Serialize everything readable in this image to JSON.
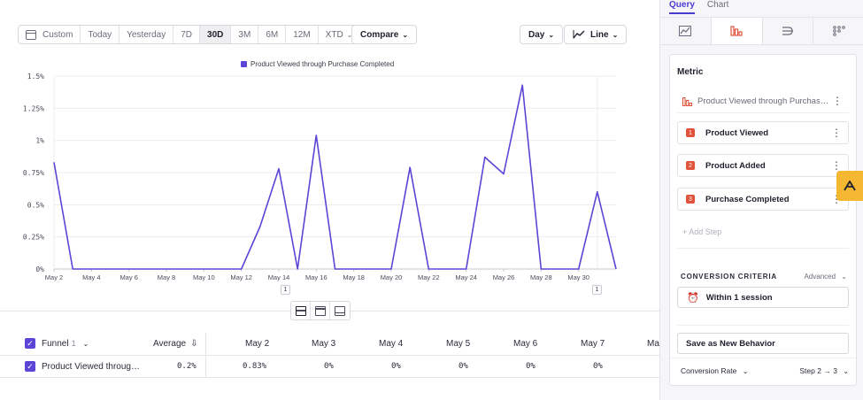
{
  "toolbar": {
    "ranges": [
      "Custom",
      "Today",
      "Yesterday",
      "7D",
      "30D",
      "3M",
      "6M",
      "12M",
      "XTD"
    ],
    "active_range": "30D",
    "compare": "Compare",
    "interval": "Day",
    "chart_type": "Line"
  },
  "chart_data": {
    "type": "line",
    "title": "",
    "series": [
      {
        "name": "Product Viewed through Purchase Completed",
        "values": [
          0.83,
          0,
          0,
          0,
          0,
          0,
          0,
          0,
          0,
          0,
          0,
          0.33,
          0.78,
          0,
          1.04,
          0,
          0,
          0,
          0,
          0.79,
          0,
          0,
          0,
          0.87,
          0.74,
          1.43,
          0,
          0,
          0,
          0.6,
          0
        ]
      }
    ],
    "x_labels": [
      "May 2",
      "May 4",
      "May 6",
      "May 8",
      "May 10",
      "May 12",
      "May 14",
      "May 16",
      "May 18",
      "May 20",
      "May 22",
      "May 24",
      "May 26",
      "May 28",
      "May 30"
    ],
    "y_ticks": [
      "0%",
      "0.25%",
      "0.5%",
      "0.75%",
      "1%",
      "1.25%",
      "1.5%"
    ],
    "ylim": [
      0,
      1.5
    ],
    "color": "#5b45d6",
    "grid": true,
    "legend": "top-center"
  },
  "markers": [
    "1",
    "1"
  ],
  "table": {
    "funnel_label": "Funnel",
    "funnel_count": "1",
    "average_label": "Average",
    "columns": [
      "May 2",
      "May 3",
      "May 4",
      "May 5",
      "May 6",
      "May 7",
      "May"
    ],
    "row": {
      "name": "Product Viewed throug…",
      "average": "0.2%",
      "values": [
        "0.83%",
        "0%",
        "0%",
        "0%",
        "0%",
        "0%"
      ]
    }
  },
  "panel": {
    "tabs": [
      "Query",
      "Chart"
    ],
    "metric_title": "Metric",
    "funnel_name": "Product Viewed through Purchas…",
    "steps": [
      {
        "num": "1",
        "label": "Product Viewed"
      },
      {
        "num": "2",
        "label": "Product Added"
      },
      {
        "num": "3",
        "label": "Purchase Completed"
      }
    ],
    "add_step": "+ Add Step",
    "criteria_title": "CONVERSION CRITERIA",
    "advanced": "Advanced",
    "within": "Within 1 session",
    "save_behavior": "Save as New Behavior",
    "conversion_rate": "Conversion Rate",
    "step_range": "Step 2 → 3"
  }
}
